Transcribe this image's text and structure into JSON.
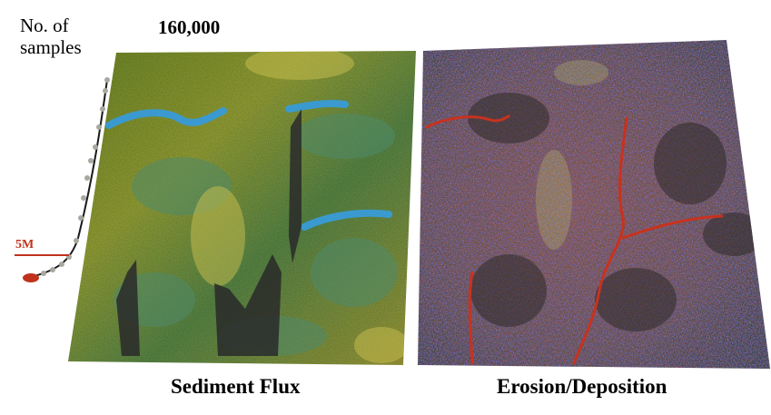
{
  "samples": {
    "label_line1": "No. of",
    "label_line2": "samples",
    "count": "160,000",
    "marker_label": "5M"
  },
  "panels": [
    {
      "caption": "Sediment Flux"
    },
    {
      "caption": "Erosion/Deposition"
    }
  ],
  "colors": {
    "curve": "#1a1a1a",
    "curve_dots": "#a8a8a0",
    "marker": "#c0321c",
    "flux_base": "#8f9f2c",
    "flux_channel": "#3a9ad0",
    "erosion_blue": "#3a3ec0",
    "erosion_red": "#c83a1e",
    "erosion_dark": "#3a2e2a"
  }
}
